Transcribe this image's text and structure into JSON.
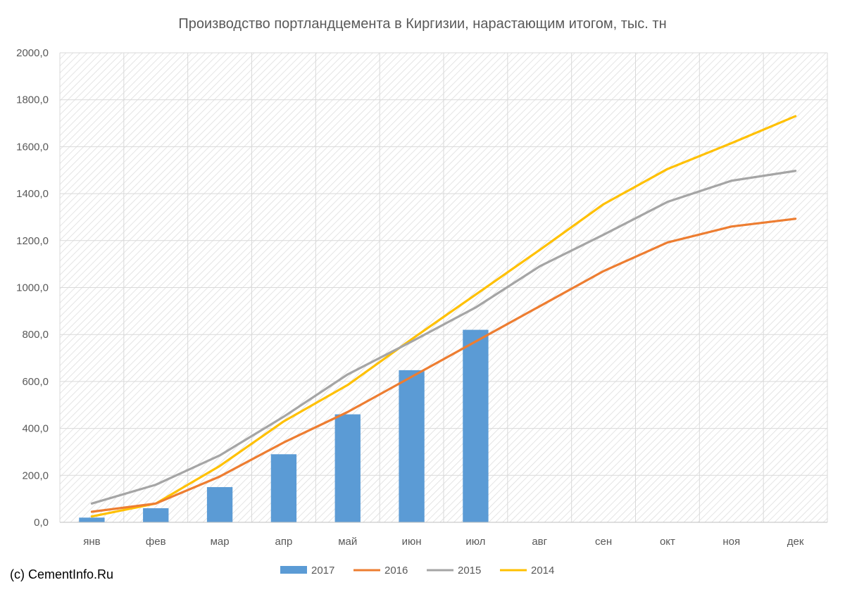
{
  "copyright": "(c) CementInfo.Ru",
  "chart_data": {
    "type": "bar",
    "title": "Производство портландцемента в Киргизии, нарастающим итогом, тыс. тн",
    "xlabel": "",
    "ylabel": "",
    "categories": [
      "янв",
      "фев",
      "мар",
      "апр",
      "май",
      "июн",
      "июл",
      "авг",
      "сен",
      "окт",
      "ноя",
      "дек"
    ],
    "ylim": [
      0,
      2000
    ],
    "yticks": [
      "0,0",
      "200,0",
      "400,0",
      "600,0",
      "800,0",
      "1000,0",
      "1200,0",
      "1400,0",
      "1600,0",
      "1800,0",
      "2000,0"
    ],
    "grid": true,
    "legend_position": "bottom",
    "series": [
      {
        "name": "2017",
        "type": "bar",
        "color": "#5b9bd5",
        "values": [
          20,
          60,
          150,
          290,
          460,
          648,
          820,
          null,
          null,
          null,
          null,
          null
        ]
      },
      {
        "name": "2016",
        "type": "line",
        "color": "#ed7d31",
        "values": [
          45,
          80,
          195,
          340,
          470,
          620,
          770,
          920,
          1070,
          1192,
          1260,
          1293
        ]
      },
      {
        "name": "2015",
        "type": "line",
        "color": "#a5a5a5",
        "values": [
          80,
          160,
          285,
          450,
          630,
          770,
          915,
          1090,
          1225,
          1365,
          1455,
          1497
        ]
      },
      {
        "name": "2014",
        "type": "line",
        "color": "#ffc000",
        "values": [
          25,
          80,
          240,
          430,
          585,
          780,
          970,
          1160,
          1355,
          1505,
          1615,
          1730
        ]
      }
    ]
  }
}
